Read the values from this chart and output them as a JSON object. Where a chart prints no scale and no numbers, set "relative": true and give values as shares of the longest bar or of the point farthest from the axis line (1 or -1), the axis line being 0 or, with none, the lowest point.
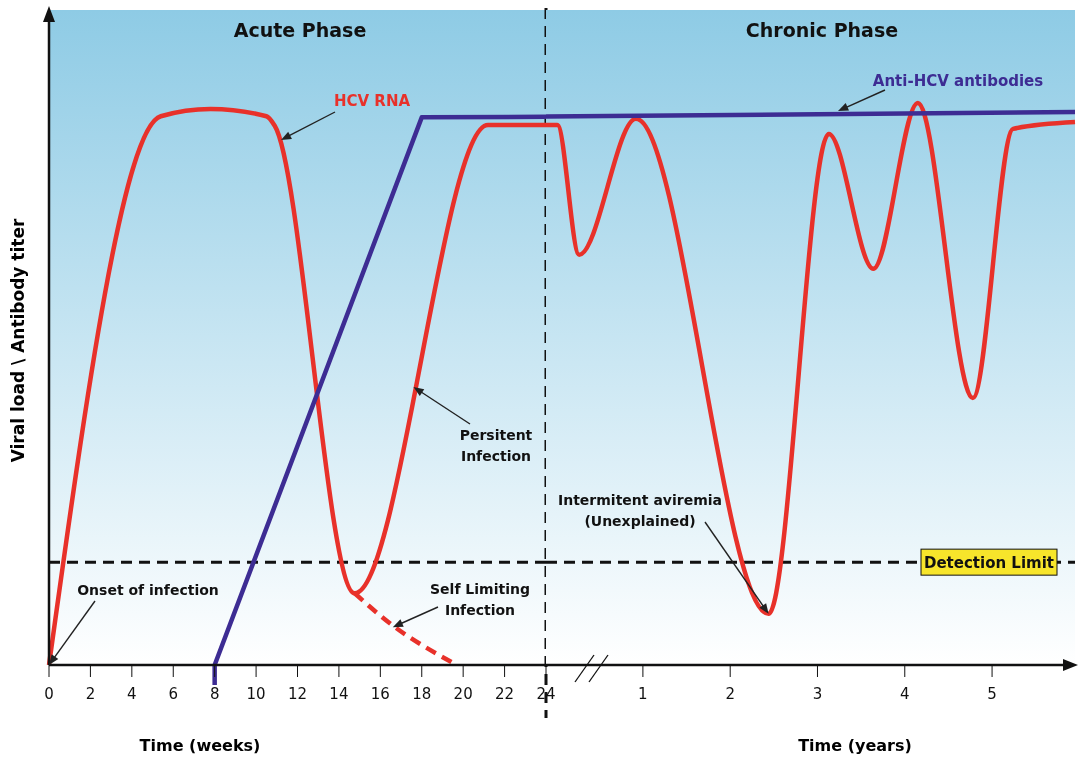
{
  "chart_data": [
    {
      "type": "line",
      "relative": true,
      "ylabel": "Viral load \\ Antibody titer",
      "xlabel": "Time (weeks)",
      "xlim": [
        0,
        24
      ],
      "xticks": [
        0,
        2,
        4,
        6,
        8,
        10,
        12,
        14,
        16,
        18,
        20,
        22,
        24
      ],
      "series": [
        {
          "name": "HCV RNA",
          "color": "#e8312a",
          "x": [
            0,
            5.4,
            7.8,
            10.5,
            10.9,
            14.76,
            21.2,
            24
          ],
          "values": [
            0,
            0.987,
            1,
            0.987,
            0.97,
            0.129,
            0.971,
            0.971
          ]
        },
        {
          "color": "#e8312a",
          "line_style": "dashed",
          "x": [
            14.76,
            16.5,
            19.6
          ],
          "values": [
            0.129,
            0.074,
            0.002
          ]
        },
        {
          "color": "#3d2c93",
          "x": [
            8,
            8,
            18,
            24
          ],
          "values": [
            -0.036,
            0,
            0.985,
            0.986
          ]
        }
      ],
      "ref_lines": [
        {
          "axis": "y",
          "value": 0.185,
          "line_style": "dashed"
        },
        {
          "axis": "x",
          "value": 24,
          "line_style": "dashed"
        }
      ],
      "annotations": [
        "Acute Phase",
        {
          "text": "Onset of infection",
          "x": 0,
          "y": 0
        },
        {
          "text": "Persitent\nInfection",
          "x": 17.6,
          "y": 0.5
        },
        {
          "text": "Self Limiting\nInfection",
          "x": 16.6,
          "y": 0.068
        }
      ]
    },
    {
      "type": "line",
      "relative": true,
      "xlabel": "Time (years)",
      "tick_labels": "x",
      "xlim": [
        -0.11,
        5.95
      ],
      "xticks": [
        1,
        2,
        3,
        4,
        5
      ],
      "series": [
        {
          "color": "#e8312a",
          "x": [
            -0.11,
            0.02,
            0.27,
            0.92,
            2.44,
            3.13,
            3.64,
            4.15,
            4.78,
            5.24,
            5.95
          ],
          "values": [
            0.961,
            0.961,
            0.73,
            0.972,
            0.091,
            0.945,
            0.705,
            1,
            0.475,
            0.954,
            0.966
          ]
        },
        {
          "name": "Anti-HCV antibodies",
          "color": "#3d2c93",
          "x": [
            -0.11,
            5.95
          ],
          "values": [
            0.976,
            0.984
          ]
        }
      ],
      "ref_lines": [
        {
          "axis": "y",
          "value": 0.183,
          "label": "Detection Limit",
          "line_style": "dashed"
        }
      ],
      "annotations": [
        "Chronic Phase",
        {
          "text": "Intermitent aviremia\n(Unexplained)",
          "x": 2.44,
          "y": 0.091
        }
      ]
    }
  ]
}
